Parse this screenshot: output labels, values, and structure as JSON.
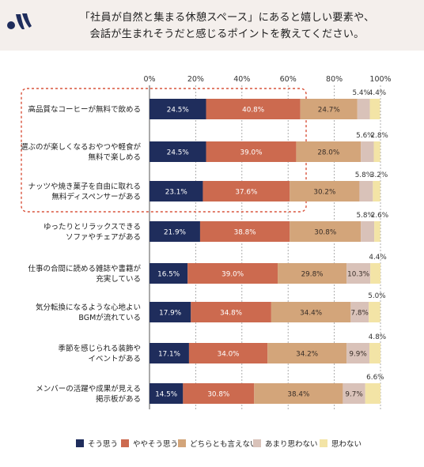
{
  "title": {
    "line1": "「社員が自然と集まる休憩スペース」にあると嬉しい要素や、",
    "line2": "会話が生まれそうだと感じるポイントを教えてください。"
  },
  "chart_data": {
    "type": "bar",
    "orientation": "horizontal",
    "stacked": true,
    "percent_axis": true,
    "xlim": [
      0,
      100
    ],
    "x_ticks": [
      "0%",
      "20%",
      "40%",
      "60%",
      "80%",
      "100%"
    ],
    "categories": [
      [
        "高品質なコーヒーが無料で飲める"
      ],
      [
        "選ぶのが楽しくなるおやつや軽食が",
        "無料で楽しめる"
      ],
      [
        "ナッツや焼き菓子を自由に取れる",
        "無料ディスペンサーがある"
      ],
      [
        "ゆったりとリラックスできる",
        "ソファやチェアがある"
      ],
      [
        "仕事の合間に読める雑誌や書籍が",
        "充実している"
      ],
      [
        "気分転換になるような心地よい",
        "BGMが流れている"
      ],
      [
        "季節を感じられる装飾や",
        "イベントがある"
      ],
      [
        "メンバーの活躍や成果が見える",
        "掲示板がある"
      ]
    ],
    "series": [
      {
        "name": "そう思う",
        "color": "#1f2d5c",
        "values": [
          24.5,
          24.5,
          23.1,
          21.9,
          16.5,
          17.9,
          17.1,
          14.5
        ]
      },
      {
        "name": "ややそう思う",
        "color": "#cc6a4f",
        "values": [
          40.8,
          39.0,
          37.6,
          38.8,
          39.0,
          34.8,
          34.0,
          30.8
        ]
      },
      {
        "name": "どちらとも言えない",
        "color": "#d3a57a",
        "values": [
          24.7,
          28.0,
          30.2,
          30.8,
          29.8,
          34.4,
          34.2,
          38.4
        ]
      },
      {
        "name": "あまり思わない",
        "color": "#d9c2b9",
        "values": [
          5.4,
          5.6,
          5.8,
          5.8,
          10.3,
          7.8,
          9.9,
          9.7
        ]
      },
      {
        "name": "思わない",
        "color": "#f3e4a6",
        "values": [
          4.4,
          2.8,
          3.2,
          2.6,
          4.4,
          5.0,
          4.8,
          6.6
        ]
      }
    ],
    "value_labels": [
      [
        "24.5%",
        "40.8%",
        "24.7%",
        "5.4%",
        "4.4%"
      ],
      [
        "24.5%",
        "39.0%",
        "28.0%",
        "5.6%",
        "2.8%"
      ],
      [
        "23.1%",
        "37.6%",
        "30.2%",
        "5.8%",
        "3.2%"
      ],
      [
        "21.9%",
        "38.8%",
        "30.8%",
        "5.8%",
        "2.6%"
      ],
      [
        "16.5%",
        "39.0%",
        "29.8%",
        "10.3%",
        "4.4%"
      ],
      [
        "17.9%",
        "34.8%",
        "34.4%",
        "7.8%",
        "5.0%"
      ],
      [
        "17.1%",
        "34.0%",
        "34.2%",
        "9.9%",
        "4.8%"
      ],
      [
        "14.5%",
        "30.8%",
        "38.4%",
        "9.7%",
        "6.6%"
      ]
    ],
    "highlight_rows": [
      0,
      1,
      2
    ],
    "legend_position": "bottom"
  }
}
